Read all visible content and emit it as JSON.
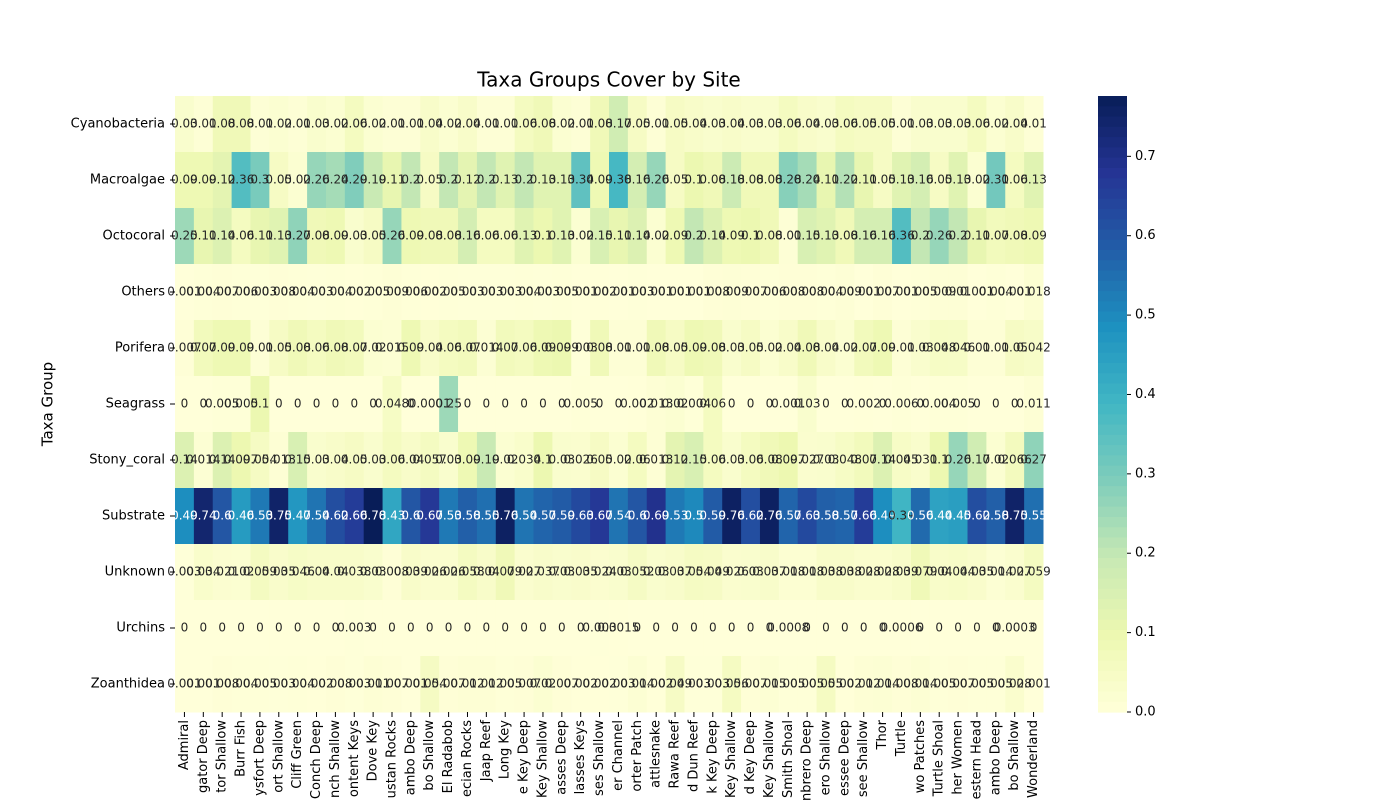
{
  "chart_data": {
    "type": "heatmap",
    "title": "Taxa Groups Cover by Site",
    "y_label": "Taxa Group",
    "cmap": "YlGnBu",
    "zlim": [
      0,
      0.776
    ],
    "zticks": [
      {
        "value": 0,
        "label": "0.0"
      },
      0.1,
      0.2,
      0.3,
      0.4,
      0.5,
      0.6,
      0.7
    ],
    "rows": [
      "Cyanobacteria",
      "Macroalgae",
      "Octocoral",
      "Others",
      "Porifera",
      "Seagrass",
      "Stony_coral",
      "Substrate",
      "Unknown",
      "Urchins",
      "Zoanthidea"
    ],
    "categories": [
      "Admiral",
      "gator Deep",
      "tor Shallow",
      "Burr Fish",
      "ysfort Deep",
      "ort Shallow",
      "Cliff Green",
      "Conch Deep",
      "nch Shallow",
      "ontent Keys",
      "Dove Key",
      "ustan Rocks",
      "ambo Deep",
      "bo Shallow",
      "El Radabob",
      "ecian Rocks",
      "Jaap Reef",
      "Long Key",
      "e Key Deep",
      "Key Shallow",
      "asses Deep",
      "lasses Keys",
      "ses Shallow",
      "er Channel",
      "orter Patch",
      "attlesnake",
      "Rawa Reef",
      "d Dun Reef",
      "k Key Deep",
      "Key Shallow",
      "d Key Deep",
      "Key Shallow",
      "Smith Shoal",
      "nbrero Deep",
      "ero Shallow",
      "essee Deep",
      "see Shallow",
      "Thor",
      "Turtle",
      "wo Patches",
      "Turtle Shoal",
      "her Women",
      "estern Head",
      "ambo Deep",
      "bo Shallow",
      "Wonderland"
    ],
    "values": [
      [
        0.03,
        0.01,
        0.08,
        0.08,
        0.01,
        0.02,
        0.01,
        0.03,
        0.02,
        0.06,
        0.02,
        0.01,
        0.01,
        0.04,
        0.02,
        0.04,
        0.01,
        0.01,
        0.06,
        0.08,
        0.02,
        0.01,
        0.08,
        0.17,
        0.05,
        0.01,
        0.05,
        0.04,
        0.03,
        0.04,
        0.03,
        0.03,
        0.06,
        0.04,
        0.03,
        0.06,
        0.05,
        0.05,
        0.01,
        0.03,
        0.03,
        0.03,
        0.06,
        0.02,
        0.04,
        0.01
      ],
      [
        0.09,
        0.09,
        0.12,
        0.36,
        0.3,
        0.05,
        0.02,
        0.26,
        0.24,
        0.29,
        0.19,
        0.11,
        0.2,
        0.05,
        0.2,
        0.12,
        0.2,
        0.13,
        0.2,
        0.13,
        0.13,
        0.34,
        0.09,
        0.38,
        0.16,
        0.26,
        0.05,
        0.1,
        0.08,
        0.18,
        0.08,
        0.08,
        0.28,
        0.24,
        0.11,
        0.22,
        0.11,
        0.05,
        0.13,
        0.16,
        0.05,
        0.13,
        0.02,
        0.31,
        0.06,
        0.13
      ],
      [
        0.25,
        0.11,
        0.14,
        0.06,
        0.11,
        0.13,
        0.27,
        0.08,
        0.09,
        0.03,
        0.05,
        0.26,
        0.09,
        0.08,
        0.08,
        0.16,
        0.06,
        0.06,
        0.13,
        0.1,
        0.13,
        0.02,
        0.15,
        0.11,
        0.14,
        0.02,
        0.09,
        0.2,
        0.14,
        0.09,
        0.1,
        0.08,
        0.01,
        0.15,
        0.13,
        0.08,
        0.16,
        0.16,
        0.36,
        0.2,
        0.26,
        0.2,
        0.11,
        0.07,
        0.08,
        0.09
      ],
      [
        0.001,
        0.004,
        0.007,
        0.006,
        0.003,
        0.008,
        0.004,
        0.003,
        0.004,
        0.002,
        0.005,
        0.009,
        0.006,
        0.002,
        0.005,
        0.003,
        0.003,
        0.003,
        0.004,
        0.003,
        0.005,
        0.001,
        0.002,
        0.001,
        0.003,
        0.001,
        0.001,
        0.001,
        0.008,
        0.009,
        0.007,
        0.006,
        0.008,
        0.008,
        0.004,
        0.009,
        0.001,
        0.007,
        0.001,
        0.005,
        0.009,
        0.01,
        0.001,
        0.004,
        0.001,
        0.018
      ],
      [
        0.007,
        0.07,
        0.09,
        0.09,
        0.01,
        0.05,
        0.08,
        0.06,
        0.08,
        0.07,
        0.02,
        0.015,
        0.09,
        0.04,
        0.06,
        0.07,
        0.014,
        0.07,
        0.06,
        0.09,
        0.099,
        0.003,
        0.08,
        0.01,
        0.01,
        0.08,
        0.05,
        0.09,
        0.08,
        0.03,
        0.05,
        0.02,
        0.04,
        0.08,
        0.04,
        0.02,
        0.07,
        0.09,
        0.01,
        0.03,
        0.048,
        0.046,
        0.01,
        0.01,
        0.05,
        0.042
      ],
      [
        0,
        0,
        0.005,
        0.005,
        0.1,
        0,
        0,
        0,
        0,
        0,
        0,
        0.048,
        0,
        0.0001,
        0.25,
        0,
        0,
        0,
        0,
        0,
        0,
        0.005,
        0,
        0,
        0.002,
        0.013,
        0.02,
        0.004,
        0.06,
        0,
        0,
        0,
        0.001,
        0.03,
        0,
        0,
        0.002,
        0,
        0.006,
        0,
        0.004,
        0.005,
        0,
        0,
        0,
        0.011
      ],
      [
        0.14,
        0.014,
        0.14,
        0.097,
        0.054,
        0.013,
        0.15,
        0.03,
        0.04,
        0.05,
        0.03,
        0.06,
        0.04,
        0.057,
        0.03,
        0.09,
        0.19,
        0.02,
        0.034,
        0.1,
        0.03,
        0.026,
        0.05,
        0.02,
        0.06,
        0.013,
        0.12,
        0.15,
        0.06,
        0.03,
        0.06,
        0.08,
        0.097,
        0.027,
        0.03,
        0.048,
        0.07,
        0.14,
        0.045,
        0.031,
        0.1,
        0.26,
        0.17,
        0.02,
        0.066,
        0.27
      ],
      [
        0.49,
        0.74,
        0.6,
        0.46,
        0.53,
        0.75,
        0.47,
        0.54,
        0.62,
        0.66,
        0.78,
        0.43,
        0.6,
        0.67,
        0.53,
        0.58,
        0.55,
        0.76,
        0.54,
        0.57,
        0.59,
        0.63,
        0.67,
        0.54,
        0.6,
        0.69,
        0.53,
        0.5,
        0.59,
        0.76,
        0.62,
        0.76,
        0.57,
        0.63,
        0.58,
        0.57,
        0.66,
        0.49,
        0.39,
        0.56,
        0.44,
        0.45,
        0.62,
        0.58,
        0.75,
        0.55
      ],
      [
        0.003,
        0.034,
        0.021,
        0.02,
        0.059,
        0.035,
        0.046,
        0.04,
        0.04,
        0.038,
        0.03,
        0.008,
        0.039,
        0.026,
        0.026,
        0.058,
        0.04,
        0.079,
        0.027,
        0.037,
        0.03,
        0.035,
        0.024,
        0.03,
        0.052,
        0.03,
        0.037,
        0.054,
        0.049,
        0.026,
        0.03,
        0.037,
        0.018,
        0.018,
        0.038,
        0.038,
        0.028,
        0.028,
        0.039,
        0.079,
        0.04,
        0.044,
        0.035,
        0.014,
        0.027,
        0.059
      ],
      [
        0,
        0,
        0,
        0,
        0,
        0,
        0,
        0,
        0,
        0.003,
        0,
        0,
        0,
        0,
        0,
        0,
        0,
        0,
        0,
        0,
        0,
        0,
        0.003,
        0.0015,
        0,
        0,
        0,
        0,
        0,
        0,
        0,
        0,
        0.0008,
        0,
        0,
        0,
        0,
        0,
        0.0006,
        0,
        0,
        0,
        0,
        0,
        0.0003,
        0
      ],
      [
        0.001,
        0.001,
        0.008,
        0.004,
        0.005,
        0.003,
        0.004,
        0.002,
        0.008,
        0.003,
        0.011,
        0.007,
        0.001,
        0.054,
        0.007,
        0.012,
        0.012,
        0.005,
        0.007,
        0.02,
        0.007,
        0.002,
        0.002,
        0.003,
        0.014,
        0.002,
        0.049,
        0.003,
        0.003,
        0.056,
        0.007,
        0.015,
        0.005,
        0.005,
        0.055,
        0.002,
        0.012,
        0.014,
        0.008,
        0.014,
        0.005,
        0.007,
        0.005,
        0.005,
        0.028,
        0.001
      ]
    ]
  }
}
